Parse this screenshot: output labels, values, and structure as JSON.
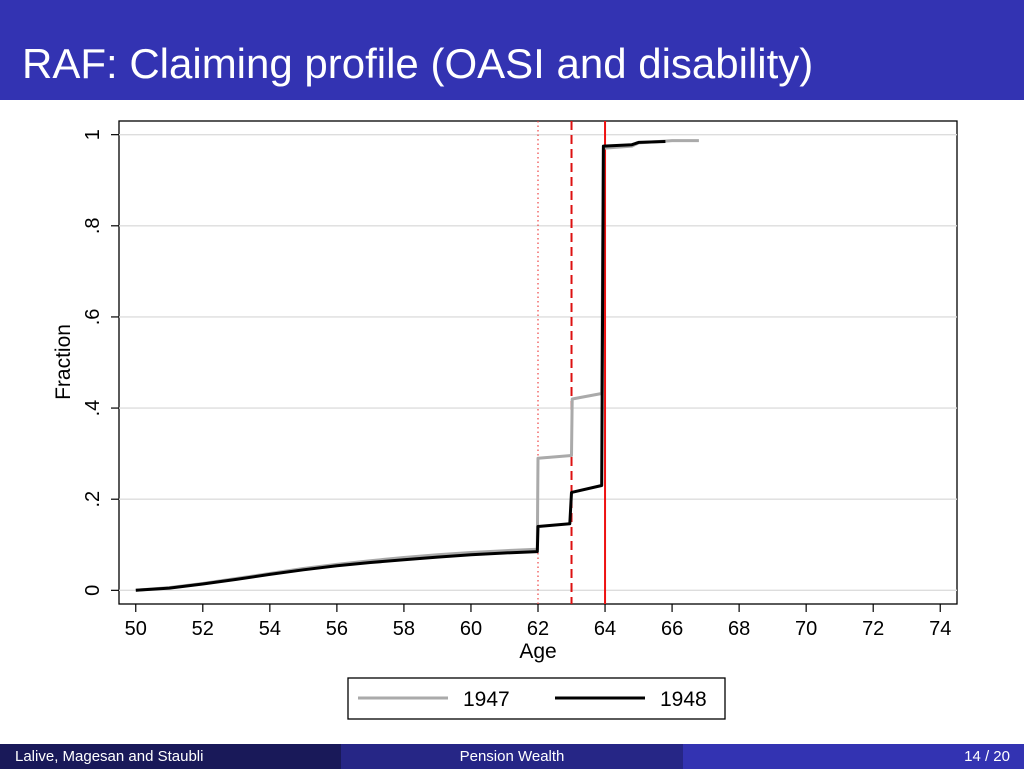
{
  "slide": {
    "title": "RAF: Claiming profile (OASI and disability)",
    "colors": {
      "title_bar": "#3333b2",
      "footer_left": "#191959",
      "footer_mid": "#262686",
      "footer_right": "#3333b2"
    }
  },
  "footer": {
    "authors": "Lalive, Magesan and Staubli",
    "section": "Pension Wealth",
    "page": "14 / 20"
  },
  "chart_data": {
    "type": "line",
    "title": "",
    "xlabel": "Age",
    "ylabel": "Fraction",
    "xlim": [
      49.5,
      74.5
    ],
    "ylim": [
      -0.03,
      1.03
    ],
    "xticks": [
      50,
      52,
      54,
      56,
      58,
      60,
      62,
      64,
      66,
      68,
      70,
      72,
      74
    ],
    "xtick_labels": [
      "50",
      "52",
      "54",
      "56",
      "58",
      "60",
      "62",
      "64",
      "66",
      "68",
      "70",
      "72",
      "74"
    ],
    "yticks": [
      0,
      0.2,
      0.4,
      0.6,
      0.8,
      1
    ],
    "ytick_labels": [
      "0",
      ".2",
      ".4",
      ".6",
      ".8",
      "1"
    ],
    "grid": "horizontal",
    "legend": "bottom",
    "series": [
      {
        "name": "1947",
        "color": "#aaaaaa",
        "points": [
          [
            50,
            0
          ],
          [
            51,
            0.006
          ],
          [
            52,
            0.015
          ],
          [
            53,
            0.026
          ],
          [
            54,
            0.037
          ],
          [
            55,
            0.048
          ],
          [
            56,
            0.057
          ],
          [
            57,
            0.065
          ],
          [
            58,
            0.072
          ],
          [
            59,
            0.078
          ],
          [
            60,
            0.083
          ],
          [
            61,
            0.087
          ],
          [
            61.98,
            0.09
          ],
          [
            62,
            0.29
          ],
          [
            63,
            0.296
          ],
          [
            63.02,
            0.42
          ],
          [
            63.9,
            0.432
          ],
          [
            63.95,
            0.97
          ],
          [
            64.8,
            0.975
          ],
          [
            65,
            0.982
          ],
          [
            66,
            0.987
          ],
          [
            66.8,
            0.987
          ]
        ]
      },
      {
        "name": "1948",
        "color": "#000000",
        "points": [
          [
            50,
            0
          ],
          [
            51,
            0.005
          ],
          [
            52,
            0.014
          ],
          [
            53,
            0.024
          ],
          [
            54,
            0.035
          ],
          [
            55,
            0.045
          ],
          [
            56,
            0.054
          ],
          [
            57,
            0.061
          ],
          [
            58,
            0.067
          ],
          [
            59,
            0.073
          ],
          [
            60,
            0.078
          ],
          [
            61,
            0.082
          ],
          [
            61.98,
            0.085
          ],
          [
            62,
            0.14
          ],
          [
            62.95,
            0.146
          ],
          [
            63,
            0.215
          ],
          [
            63.9,
            0.23
          ],
          [
            63.95,
            0.975
          ],
          [
            64.8,
            0.978
          ],
          [
            65,
            0.983
          ],
          [
            65.8,
            0.985
          ]
        ]
      }
    ],
    "reference_lines": [
      {
        "x": 62,
        "style": "dotted",
        "color": "#ee4444"
      },
      {
        "x": 63,
        "style": "dashed",
        "color": "#dd1111"
      },
      {
        "x": 64,
        "style": "solid",
        "color": "#ee1111"
      }
    ]
  }
}
